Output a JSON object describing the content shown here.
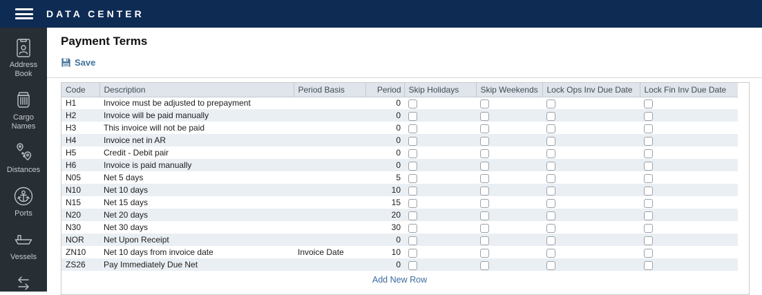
{
  "app": {
    "title": "DATA CENTER"
  },
  "page": {
    "title": "Payment Terms",
    "save_label": "Save",
    "add_new_row_label": "Add New Row"
  },
  "sidebar": {
    "items": [
      {
        "id": "address-book",
        "label": "Address Book",
        "icon": "address-book-icon"
      },
      {
        "id": "cargo-names",
        "label": "Cargo Names",
        "icon": "cargo-names-icon"
      },
      {
        "id": "distances",
        "label": "Distances",
        "icon": "distances-icon"
      },
      {
        "id": "ports",
        "label": "Ports",
        "icon": "ports-icon"
      },
      {
        "id": "vessels",
        "label": "Vessels",
        "icon": "vessels-icon"
      },
      {
        "id": "exchange",
        "label": "",
        "icon": "exchange-arrows-icon"
      }
    ]
  },
  "table": {
    "columns": [
      "Code",
      "Description",
      "Period Basis",
      "Period",
      "Skip Holidays",
      "Skip Weekends",
      "Lock Ops Inv Due Date",
      "Lock Fin Inv Due Date"
    ],
    "rows": [
      {
        "code": "H1",
        "description": "Invoice must be adjusted to prepayment",
        "period_basis": "",
        "period": "0",
        "skip_holidays": false,
        "skip_weekends": false,
        "lock_ops_inv_due_date": false,
        "lock_fin_inv_due_date": false
      },
      {
        "code": "H2",
        "description": "Invoice will be paid manually",
        "period_basis": "",
        "period": "0",
        "skip_holidays": false,
        "skip_weekends": false,
        "lock_ops_inv_due_date": false,
        "lock_fin_inv_due_date": false
      },
      {
        "code": "H3",
        "description": "This invoice will not be paid",
        "period_basis": "",
        "period": "0",
        "skip_holidays": false,
        "skip_weekends": false,
        "lock_ops_inv_due_date": false,
        "lock_fin_inv_due_date": false
      },
      {
        "code": "H4",
        "description": "Invoice net in AR",
        "period_basis": "",
        "period": "0",
        "skip_holidays": false,
        "skip_weekends": false,
        "lock_ops_inv_due_date": false,
        "lock_fin_inv_due_date": false
      },
      {
        "code": "H5",
        "description": "Credit - Debit pair",
        "period_basis": "",
        "period": "0",
        "skip_holidays": false,
        "skip_weekends": false,
        "lock_ops_inv_due_date": false,
        "lock_fin_inv_due_date": false
      },
      {
        "code": "H6",
        "description": "Invoice is paid manually",
        "period_basis": "",
        "period": "0",
        "skip_holidays": false,
        "skip_weekends": false,
        "lock_ops_inv_due_date": false,
        "lock_fin_inv_due_date": false
      },
      {
        "code": "N05",
        "description": "Net 5 days",
        "period_basis": "",
        "period": "5",
        "skip_holidays": false,
        "skip_weekends": false,
        "lock_ops_inv_due_date": false,
        "lock_fin_inv_due_date": false
      },
      {
        "code": "N10",
        "description": "Net 10 days",
        "period_basis": "",
        "period": "10",
        "skip_holidays": false,
        "skip_weekends": false,
        "lock_ops_inv_due_date": false,
        "lock_fin_inv_due_date": false
      },
      {
        "code": "N15",
        "description": "Net 15 days",
        "period_basis": "",
        "period": "15",
        "skip_holidays": false,
        "skip_weekends": false,
        "lock_ops_inv_due_date": false,
        "lock_fin_inv_due_date": false
      },
      {
        "code": "N20",
        "description": "Net 20 days",
        "period_basis": "",
        "period": "20",
        "skip_holidays": false,
        "skip_weekends": false,
        "lock_ops_inv_due_date": false,
        "lock_fin_inv_due_date": false
      },
      {
        "code": "N30",
        "description": "Net 30 days",
        "period_basis": "",
        "period": "30",
        "skip_holidays": false,
        "skip_weekends": false,
        "lock_ops_inv_due_date": false,
        "lock_fin_inv_due_date": false
      },
      {
        "code": "NOR",
        "description": "Net Upon Receipt",
        "period_basis": "",
        "period": "0",
        "skip_holidays": false,
        "skip_weekends": false,
        "lock_ops_inv_due_date": false,
        "lock_fin_inv_due_date": false
      },
      {
        "code": "ZN10",
        "description": "Net 10 days from invoice date",
        "period_basis": "Invoice Date",
        "period": "10",
        "skip_holidays": false,
        "skip_weekends": false,
        "lock_ops_inv_due_date": false,
        "lock_fin_inv_due_date": false
      },
      {
        "code": "ZS26",
        "description": "Pay Immediately Due Net",
        "period_basis": "",
        "period": "0",
        "skip_holidays": false,
        "skip_weekends": false,
        "lock_ops_inv_due_date": false,
        "lock_fin_inv_due_date": false
      }
    ]
  },
  "colors": {
    "topbar": "#0e2b54",
    "sidebar": "#272e34",
    "accent_blue": "#41719c",
    "header_bg": "#dfe5ea",
    "stripe": "#eaeff4"
  }
}
